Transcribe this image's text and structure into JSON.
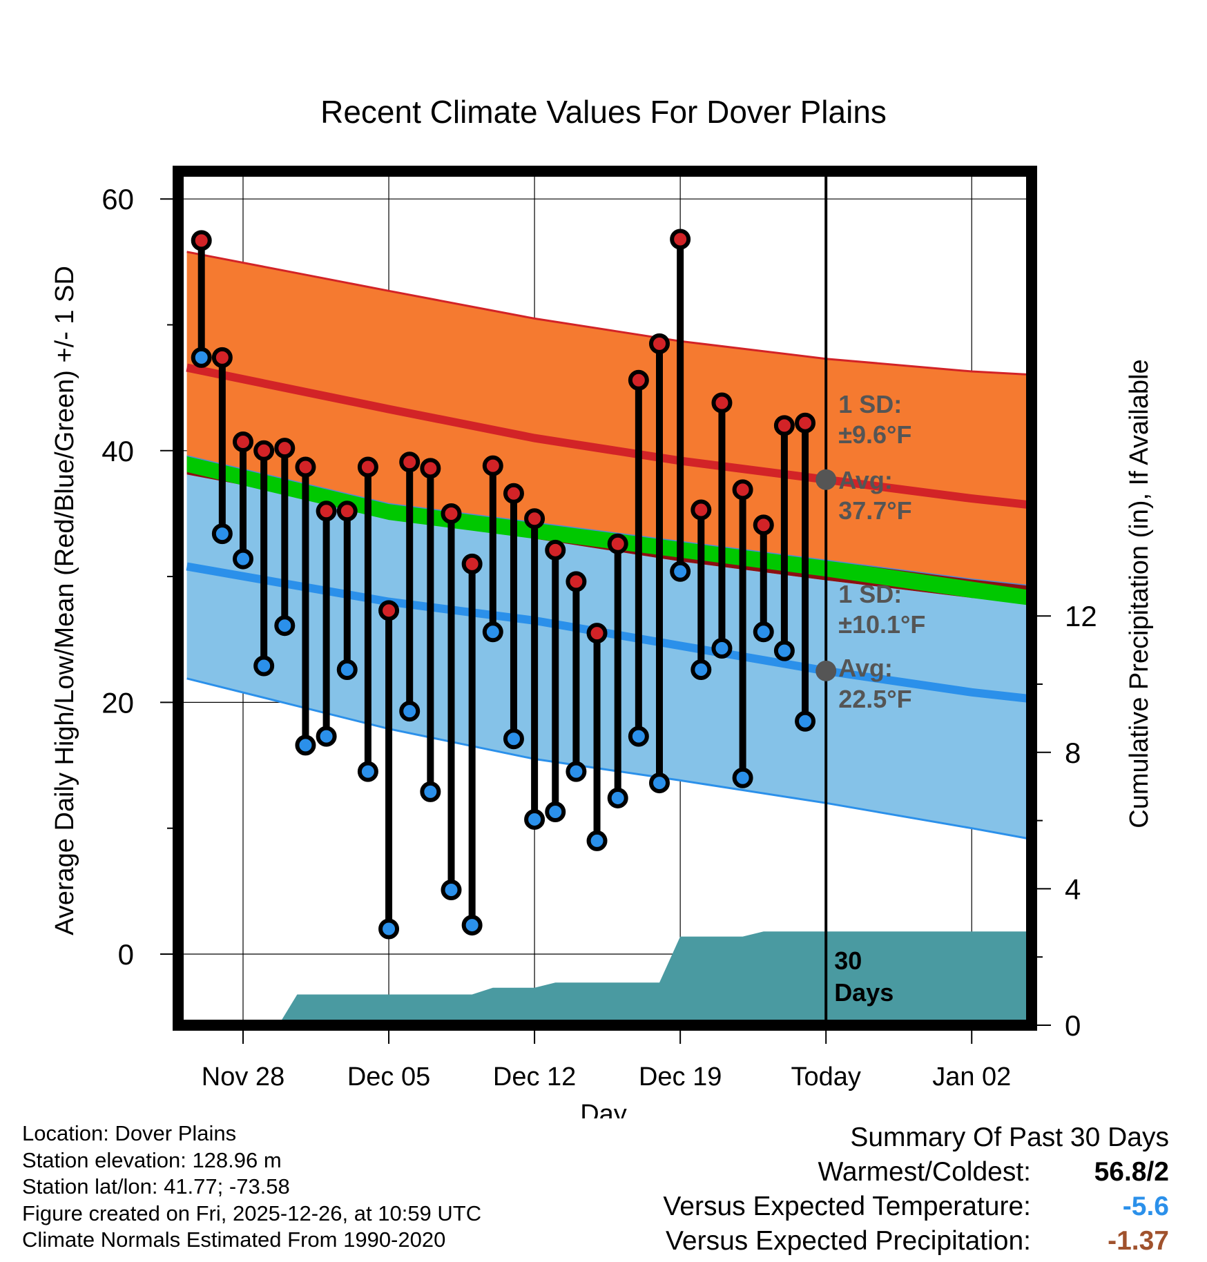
{
  "chart_data": {
    "type": "line",
    "title": "Recent Climate Values For Dover Plains",
    "xlabel": "Day",
    "ylabel": "Average Daily High/Low/Mean (Red/Blue/Green) +/- 1 SD",
    "y2label": "Cumulative Precipitation (in), If Available",
    "ylim": [
      -5.5,
      62
    ],
    "y2lim": [
      0,
      16
    ],
    "xlim": [
      -3.2,
      38.8
    ],
    "x_ticks": [
      {
        "x": 0,
        "label": "Nov 28"
      },
      {
        "x": 7,
        "label": "Dec 05"
      },
      {
        "x": 14,
        "label": "Dec 12"
      },
      {
        "x": 21,
        "label": "Dec 19"
      },
      {
        "x": 28,
        "label": "Today"
      },
      {
        "x": 35,
        "label": "Jan 02"
      }
    ],
    "y_ticks": [
      0,
      20,
      40,
      60
    ],
    "y2_ticks": [
      0,
      4,
      8,
      12
    ],
    "today_x": 28,
    "normals": {
      "x": [
        -2.7,
        7,
        14,
        21,
        28,
        35,
        38.3
      ],
      "high_avg": [
        46.6,
        43.3,
        41.0,
        39.2,
        37.7,
        36.2,
        35.6
      ],
      "high_upper": [
        55.8,
        52.7,
        50.5,
        48.7,
        47.3,
        46.3,
        46.0
      ],
      "high_lower": [
        39.6,
        35.8,
        34.3,
        32.8,
        31.3,
        29.8,
        29.2
      ],
      "low_avg": [
        30.8,
        28.0,
        26.5,
        24.5,
        22.5,
        20.8,
        20.2
      ],
      "low_upper": [
        38.1,
        35.1,
        33.0,
        31.2,
        29.7,
        28.3,
        27.8
      ],
      "low_lower": [
        21.9,
        17.9,
        15.5,
        13.8,
        12.0,
        10.0,
        9.0
      ],
      "mean_upper": [
        39.6,
        35.8,
        34.3,
        32.8,
        31.3,
        29.6,
        28.8
      ],
      "mean_lower": [
        38.3,
        34.5,
        33.0,
        31.5,
        30.0,
        28.3,
        27.6
      ]
    },
    "series": [
      {
        "name": "Daily High",
        "color": "#d22327",
        "x": [
          -2,
          -1,
          0,
          1,
          2,
          3,
          4,
          5,
          6,
          7,
          8,
          9,
          10,
          11,
          12,
          13,
          14,
          15,
          16,
          17,
          18,
          19,
          20,
          21,
          22,
          23,
          24,
          25,
          26,
          27
        ],
        "values": [
          56.7,
          47.4,
          40.7,
          40.0,
          40.2,
          38.7,
          35.2,
          35.2,
          38.7,
          27.3,
          39.1,
          38.6,
          35.0,
          31.0,
          38.8,
          36.6,
          34.6,
          32.1,
          29.6,
          25.5,
          32.6,
          45.6,
          48.5,
          56.8,
          35.3,
          43.8,
          36.9,
          34.1,
          42.0,
          42.2
        ]
      },
      {
        "name": "Daily Low",
        "color": "#2b90ea",
        "x": [
          -2,
          -1,
          0,
          1,
          2,
          3,
          4,
          5,
          6,
          7,
          8,
          9,
          10,
          11,
          12,
          13,
          14,
          15,
          16,
          17,
          18,
          19,
          20,
          21,
          22,
          23,
          24,
          25,
          26,
          27
        ],
        "values": [
          47.4,
          33.4,
          31.4,
          22.9,
          26.1,
          16.6,
          17.3,
          22.6,
          14.5,
          2.0,
          19.3,
          12.9,
          5.1,
          2.3,
          25.6,
          17.1,
          10.7,
          11.3,
          14.5,
          9.0,
          12.4,
          17.3,
          13.6,
          30.4,
          22.6,
          24.3,
          14.0,
          25.6,
          24.1,
          18.5
        ]
      },
      {
        "name": "Cumulative Precipitation",
        "color": "#4a9aa1",
        "x": [
          -2.7,
          1.7,
          2.6,
          11.0,
          12.0,
          14.0,
          15.0,
          16.0,
          20.0,
          21.0,
          24.0,
          25.0,
          38.3
        ],
        "values": [
          0,
          0,
          0.9,
          0.9,
          1.1,
          1.1,
          1.25,
          1.25,
          1.25,
          2.6,
          2.6,
          2.75,
          2.75
        ]
      }
    ],
    "annotations": {
      "high_sd_label": "1 SD:",
      "high_sd_value": "±9.6°F",
      "high_avg_label": "Avg:",
      "high_avg_value": "37.7°F",
      "low_sd_label": "1 SD:",
      "low_sd_value": "±10.1°F",
      "low_avg_label": "Avg:",
      "low_avg_value": "22.5°F",
      "precip_days": "30",
      "precip_days_unit": "Days"
    },
    "colors": {
      "high_band": "#f57a30",
      "high_line": "#d22327",
      "low_band": "#85c2e8",
      "low_line": "#2b90ea",
      "mean_band": "#00c800",
      "overlap_band": "#8b0f12",
      "precip": "#4a9aa1",
      "annotation": "#555555"
    }
  },
  "footer": {
    "location": "Location: Dover Plains",
    "elevation": "Station elevation: 128.96 m",
    "latlon": "Station lat/lon: 41.77; -73.58",
    "created": "Figure created on Fri, 2025-12-26, at 10:59 UTC",
    "normals": "Climate Normals Estimated From 1990-2020"
  },
  "summary": {
    "title": "Summary Of Past 30 Days",
    "warm_cold_label": "Warmest/Coldest:",
    "warm_cold_value": "56.8/2",
    "temp_label": "Versus Expected Temperature:",
    "temp_value": "-5.6",
    "temp_color": "#2b90ea",
    "precip_label": "Versus Expected Precipitation:",
    "precip_value": "-1.37",
    "precip_color": "#a0522d"
  }
}
